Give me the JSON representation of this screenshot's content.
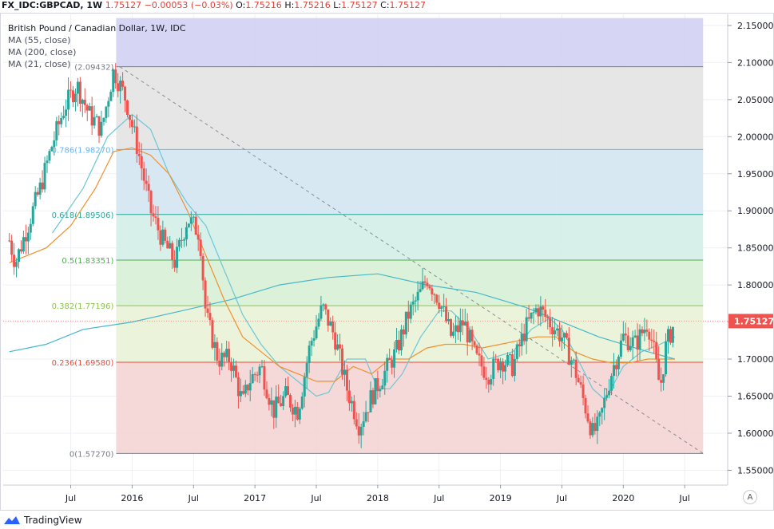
{
  "header": {
    "symbol": "FX_IDC:GBPCAD, 1W",
    "last": "1.75127",
    "change": "−0.00053 (−0.03%)",
    "open_label": "O:",
    "open": "1.75216",
    "high_label": "H:",
    "high": "1.75216",
    "low_label": "L:",
    "low": "1.75127",
    "close_label": "C:",
    "close": "1.75127"
  },
  "legend": {
    "title": "British Pound / Canadian Dollar, 1W, IDC",
    "ma1": "MA (55, close)",
    "ma2": "MA (200, close)",
    "ma3": "MA (21, close)"
  },
  "footer": {
    "brand": "TradingView",
    "auto": "A"
  },
  "chart_data": {
    "type": "candlestick",
    "title": "British Pound / Canadian Dollar, 1W, IDC",
    "ylim": [
      1.53,
      2.165
    ],
    "y_ticks": [
      "2.15000",
      "2.10000",
      "2.05000",
      "2.00000",
      "1.95000",
      "1.90000",
      "1.85000",
      "1.80000",
      "1.75000",
      "1.70000",
      "1.65000",
      "1.60000",
      "1.55000"
    ],
    "x_ticks": [
      "Jul",
      "2016",
      "Jul",
      "2017",
      "Jul",
      "2018",
      "Jul",
      "2019",
      "Jul",
      "2020",
      "Jul"
    ],
    "last_price_label": "1.75127",
    "fib_levels": [
      {
        "label": "(2.09432)",
        "value": 2.09432,
        "color": "#787b86"
      },
      {
        "label": "0.786(1.98270)",
        "value": 1.9827,
        "color": "#64b5f6"
      },
      {
        "label": "0.618(1.89506)",
        "value": 1.89506,
        "color": "#26a69a"
      },
      {
        "label": "0.5(1.83351)",
        "value": 1.83351,
        "color": "#4caf50"
      },
      {
        "label": "0.382(1.77196)",
        "value": 1.77196,
        "color": "#8bc34a"
      },
      {
        "label": "0.236(1.69580)",
        "value": 1.6958,
        "color": "#e74c3c"
      },
      {
        "label": "0(1.57270)",
        "value": 1.5727,
        "color": "#787b86"
      }
    ],
    "fib_zones": [
      {
        "from": 2.16,
        "to": 2.09432,
        "color": "#d1d0f2"
      },
      {
        "from": 2.09432,
        "to": 1.9827,
        "color": "#e3e3e3"
      },
      {
        "from": 1.9827,
        "to": 1.89506,
        "color": "#d3e6f2"
      },
      {
        "from": 1.89506,
        "to": 1.83351,
        "color": "#d3f0e8"
      },
      {
        "from": 1.83351,
        "to": 1.77196,
        "color": "#d8f0d6"
      },
      {
        "from": 1.77196,
        "to": 1.6958,
        "color": "#e9f3d6"
      },
      {
        "from": 1.6958,
        "to": 1.5727,
        "color": "#f4d4d4"
      }
    ],
    "series": [
      {
        "name": "MA (55, close)",
        "color": "#6ec6d6",
        "points": [
          [
            2015.35,
            1.87
          ],
          [
            2015.6,
            1.93
          ],
          [
            2015.8,
            2.0
          ],
          [
            2016.0,
            2.03
          ],
          [
            2016.15,
            2.01
          ],
          [
            2016.3,
            1.95
          ],
          [
            2016.45,
            1.91
          ],
          [
            2016.6,
            1.88
          ],
          [
            2016.75,
            1.82
          ],
          [
            2016.9,
            1.76
          ],
          [
            2017.05,
            1.72
          ],
          [
            2017.2,
            1.69
          ],
          [
            2017.35,
            1.67
          ],
          [
            2017.5,
            1.65
          ],
          [
            2017.6,
            1.655
          ],
          [
            2017.75,
            1.7
          ],
          [
            2017.9,
            1.7
          ],
          [
            2018.0,
            1.66
          ],
          [
            2018.1,
            1.66
          ],
          [
            2018.2,
            1.68
          ],
          [
            2018.35,
            1.73
          ],
          [
            2018.5,
            1.765
          ],
          [
            2018.6,
            1.765
          ],
          [
            2018.75,
            1.74
          ],
          [
            2018.9,
            1.7
          ],
          [
            2019.0,
            1.705
          ],
          [
            2019.1,
            1.71
          ],
          [
            2019.25,
            1.74
          ],
          [
            2019.4,
            1.755
          ],
          [
            2019.5,
            1.74
          ],
          [
            2019.6,
            1.71
          ],
          [
            2019.75,
            1.66
          ],
          [
            2019.85,
            1.645
          ],
          [
            2020.0,
            1.69
          ],
          [
            2020.15,
            1.71
          ],
          [
            2020.3,
            1.72
          ],
          [
            2020.42,
            1.73
          ]
        ]
      },
      {
        "name": "MA (200, close)",
        "color": "#45b8c9",
        "points": [
          [
            2015.0,
            1.71
          ],
          [
            2015.3,
            1.72
          ],
          [
            2015.6,
            1.74
          ],
          [
            2016.0,
            1.75
          ],
          [
            2016.4,
            1.765
          ],
          [
            2016.8,
            1.78
          ],
          [
            2017.2,
            1.8
          ],
          [
            2017.6,
            1.81
          ],
          [
            2018.0,
            1.815
          ],
          [
            2018.4,
            1.8
          ],
          [
            2018.8,
            1.79
          ],
          [
            2019.2,
            1.77
          ],
          [
            2019.5,
            1.75
          ],
          [
            2019.8,
            1.73
          ],
          [
            2020.2,
            1.71
          ],
          [
            2020.42,
            1.7
          ]
        ]
      },
      {
        "name": "MA (21, close)",
        "color": "#f0902e",
        "points": [
          [
            2015.0,
            1.83
          ],
          [
            2015.3,
            1.85
          ],
          [
            2015.5,
            1.88
          ],
          [
            2015.7,
            1.93
          ],
          [
            2015.85,
            1.98
          ],
          [
            2016.0,
            1.985
          ],
          [
            2016.15,
            1.975
          ],
          [
            2016.3,
            1.95
          ],
          [
            2016.45,
            1.9
          ],
          [
            2016.6,
            1.84
          ],
          [
            2016.75,
            1.78
          ],
          [
            2016.9,
            1.73
          ],
          [
            2017.05,
            1.71
          ],
          [
            2017.2,
            1.69
          ],
          [
            2017.35,
            1.68
          ],
          [
            2017.5,
            1.67
          ],
          [
            2017.65,
            1.67
          ],
          [
            2017.8,
            1.69
          ],
          [
            2017.95,
            1.68
          ],
          [
            2018.1,
            1.7
          ],
          [
            2018.25,
            1.7
          ],
          [
            2018.4,
            1.715
          ],
          [
            2018.55,
            1.72
          ],
          [
            2018.7,
            1.72
          ],
          [
            2018.85,
            1.715
          ],
          [
            2019.0,
            1.72
          ],
          [
            2019.15,
            1.725
          ],
          [
            2019.3,
            1.73
          ],
          [
            2019.45,
            1.73
          ],
          [
            2019.6,
            1.71
          ],
          [
            2019.75,
            1.7
          ],
          [
            2019.9,
            1.695
          ],
          [
            2020.05,
            1.695
          ],
          [
            2020.2,
            1.7
          ],
          [
            2020.42,
            1.7
          ]
        ]
      }
    ],
    "price_anchors": [
      [
        2015.0,
        1.86
      ],
      [
        2015.05,
        1.83
      ],
      [
        2015.15,
        1.88
      ],
      [
        2015.25,
        1.93
      ],
      [
        2015.35,
        1.99
      ],
      [
        2015.45,
        2.04
      ],
      [
        2015.55,
        2.07
      ],
      [
        2015.65,
        2.03
      ],
      [
        2015.75,
        2.01
      ],
      [
        2015.85,
        2.09
      ],
      [
        2015.95,
        2.05
      ],
      [
        2016.05,
        1.98
      ],
      [
        2016.15,
        1.9
      ],
      [
        2016.25,
        1.86
      ],
      [
        2016.35,
        1.83
      ],
      [
        2016.45,
        1.89
      ],
      [
        2016.55,
        1.87
      ],
      [
        2016.6,
        1.76
      ],
      [
        2016.7,
        1.7
      ],
      [
        2016.8,
        1.7
      ],
      [
        2016.9,
        1.64
      ],
      [
        2016.95,
        1.67
      ],
      [
        2017.05,
        1.69
      ],
      [
        2017.15,
        1.63
      ],
      [
        2017.25,
        1.65
      ],
      [
        2017.35,
        1.63
      ],
      [
        2017.45,
        1.72
      ],
      [
        2017.55,
        1.77
      ],
      [
        2017.65,
        1.73
      ],
      [
        2017.75,
        1.66
      ],
      [
        2017.85,
        1.61
      ],
      [
        2017.95,
        1.65
      ],
      [
        2018.05,
        1.68
      ],
      [
        2018.15,
        1.71
      ],
      [
        2018.25,
        1.76
      ],
      [
        2018.35,
        1.79
      ],
      [
        2018.4,
        1.81
      ],
      [
        2018.5,
        1.78
      ],
      [
        2018.6,
        1.73
      ],
      [
        2018.7,
        1.75
      ],
      [
        2018.8,
        1.7
      ],
      [
        2018.9,
        1.68
      ],
      [
        2019.0,
        1.7
      ],
      [
        2019.1,
        1.69
      ],
      [
        2019.2,
        1.74
      ],
      [
        2019.3,
        1.77
      ],
      [
        2019.4,
        1.75
      ],
      [
        2019.5,
        1.73
      ],
      [
        2019.6,
        1.69
      ],
      [
        2019.7,
        1.63
      ],
      [
        2019.75,
        1.6
      ],
      [
        2019.8,
        1.61
      ],
      [
        2019.9,
        1.68
      ],
      [
        2020.0,
        1.73
      ],
      [
        2020.1,
        1.72
      ],
      [
        2020.2,
        1.75
      ],
      [
        2020.25,
        1.71
      ],
      [
        2020.3,
        1.66
      ],
      [
        2020.35,
        1.72
      ],
      [
        2020.42,
        1.75
      ]
    ]
  }
}
